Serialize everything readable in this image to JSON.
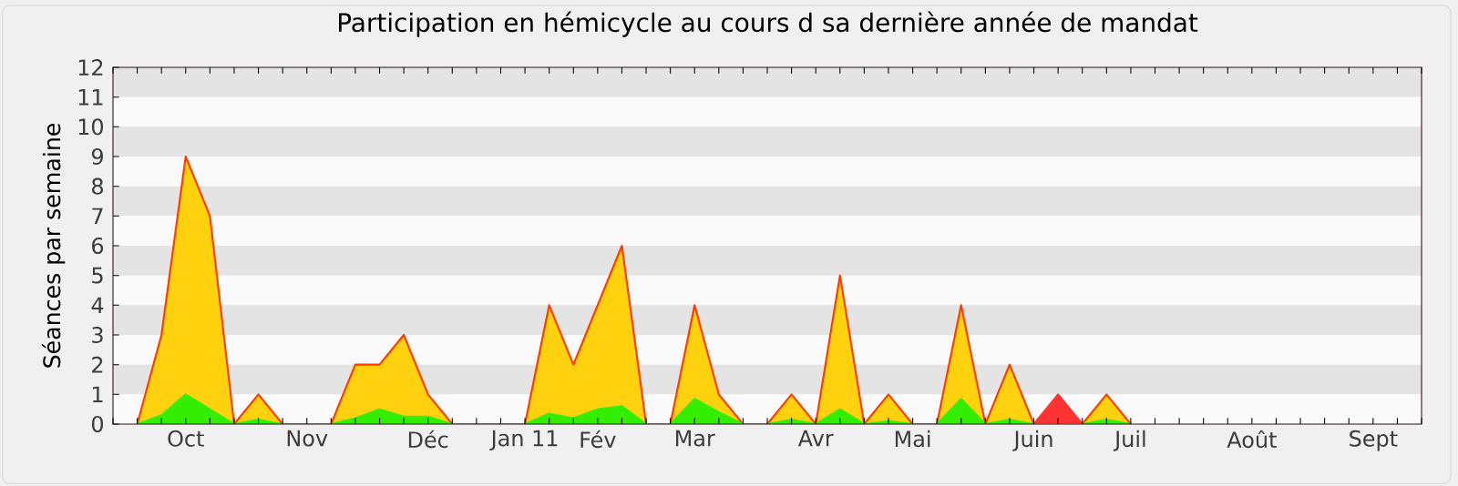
{
  "chart_data": {
    "type": "area",
    "title": "Participation en hémicycle au cours d sa dernière année de mandat",
    "ylabel": "Séances par semaine",
    "categories": [
      null,
      null,
      null,
      "Oct",
      null,
      null,
      null,
      null,
      "Nov",
      null,
      null,
      null,
      null,
      "Déc",
      null,
      null,
      null,
      "Jan 11",
      null,
      null,
      "Fév",
      null,
      null,
      null,
      "Mar",
      null,
      null,
      null,
      null,
      "Avr",
      null,
      null,
      null,
      "Mai",
      null,
      null,
      null,
      null,
      "Juin",
      null,
      null,
      null,
      "Juil",
      null,
      null,
      null,
      null,
      "Août",
      null,
      null,
      null,
      null,
      "Sept",
      null,
      null
    ],
    "ylim": [
      0,
      12
    ],
    "yticks": [
      0,
      1,
      2,
      3,
      4,
      5,
      6,
      7,
      8,
      9,
      10,
      11,
      12
    ],
    "series": [
      {
        "color": "#ffd10f",
        "values": [
          null,
          0,
          3,
          9,
          7,
          0,
          1,
          0,
          0,
          0,
          2,
          2,
          3,
          1,
          0,
          0,
          0,
          0,
          4,
          2,
          4,
          6,
          0,
          0,
          4,
          1,
          0,
          0,
          1,
          0,
          5,
          0,
          1,
          0,
          0,
          4,
          0,
          2,
          0,
          0,
          0,
          1,
          0,
          null,
          null,
          null,
          null,
          null,
          null,
          null,
          null,
          null,
          null,
          null,
          null
        ]
      },
      {
        "color": "#ff3333",
        "values": [
          null,
          null,
          null,
          null,
          null,
          null,
          null,
          null,
          null,
          null,
          null,
          null,
          null,
          null,
          null,
          null,
          null,
          null,
          null,
          null,
          null,
          null,
          null,
          null,
          null,
          null,
          null,
          null,
          null,
          null,
          null,
          null,
          null,
          null,
          null,
          null,
          null,
          null,
          0,
          1,
          0,
          null,
          null,
          null,
          null,
          null,
          null,
          null,
          null,
          null,
          null,
          null,
          null,
          null,
          null
        ]
      },
      {
        "color": "#33ee00",
        "values": [
          null,
          0,
          0.3,
          1,
          0.5,
          0,
          0.15,
          0,
          0,
          0,
          0.2,
          0.5,
          0.25,
          0.25,
          0,
          0,
          0,
          0,
          0.35,
          0.2,
          0.5,
          0.6,
          0,
          0,
          0.85,
          0.4,
          0,
          0,
          0.15,
          0,
          0.5,
          0,
          0.1,
          0,
          0,
          0.85,
          0,
          0.15,
          0,
          0,
          0,
          0.15,
          0,
          null,
          null,
          null,
          null,
          null,
          null,
          null,
          null,
          null,
          null,
          null,
          null
        ]
      }
    ]
  }
}
